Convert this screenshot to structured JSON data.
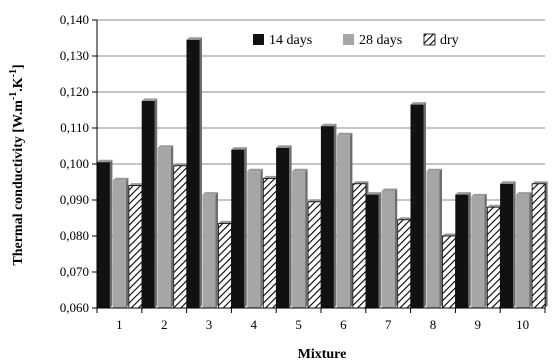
{
  "chart_data": {
    "type": "bar",
    "title": "",
    "xlabel": "Mixture",
    "ylabel": "Thermal conductivity [W.m-1.K-1]",
    "ylabel_parts": {
      "base": "Thermal conductivity [W.m",
      "sup1": "-1",
      "mid": ".K",
      "sup2": "-1",
      "end": "]"
    },
    "categories": [
      "1",
      "2",
      "3",
      "4",
      "5",
      "6",
      "7",
      "8",
      "9",
      "10"
    ],
    "ylim": [
      0.06,
      0.14
    ],
    "yticks": [
      "0,060",
      "0,070",
      "0,080",
      "0,090",
      "0,100",
      "0,110",
      "0,120",
      "0,130",
      "0,140"
    ],
    "grid": true,
    "legend_position": "top-right",
    "series": [
      {
        "name": "14 days",
        "pattern": "solid",
        "color": "#111111",
        "values": [
          0.1005,
          0.1175,
          0.1345,
          0.104,
          0.1045,
          0.1105,
          0.0915,
          0.1165,
          0.0915,
          0.0945
        ]
      },
      {
        "name": "28 days",
        "pattern": "solid",
        "color": "#a6a6a6",
        "values": [
          0.0955,
          0.1045,
          0.0915,
          0.098,
          0.098,
          0.108,
          0.0925,
          0.098,
          0.091,
          0.0915
        ]
      },
      {
        "name": "dry",
        "pattern": "hatch",
        "color": "#ffffff",
        "values": [
          0.094,
          0.0995,
          0.0835,
          0.096,
          0.0895,
          0.0945,
          0.0845,
          0.08,
          0.088,
          0.0945
        ]
      }
    ]
  }
}
